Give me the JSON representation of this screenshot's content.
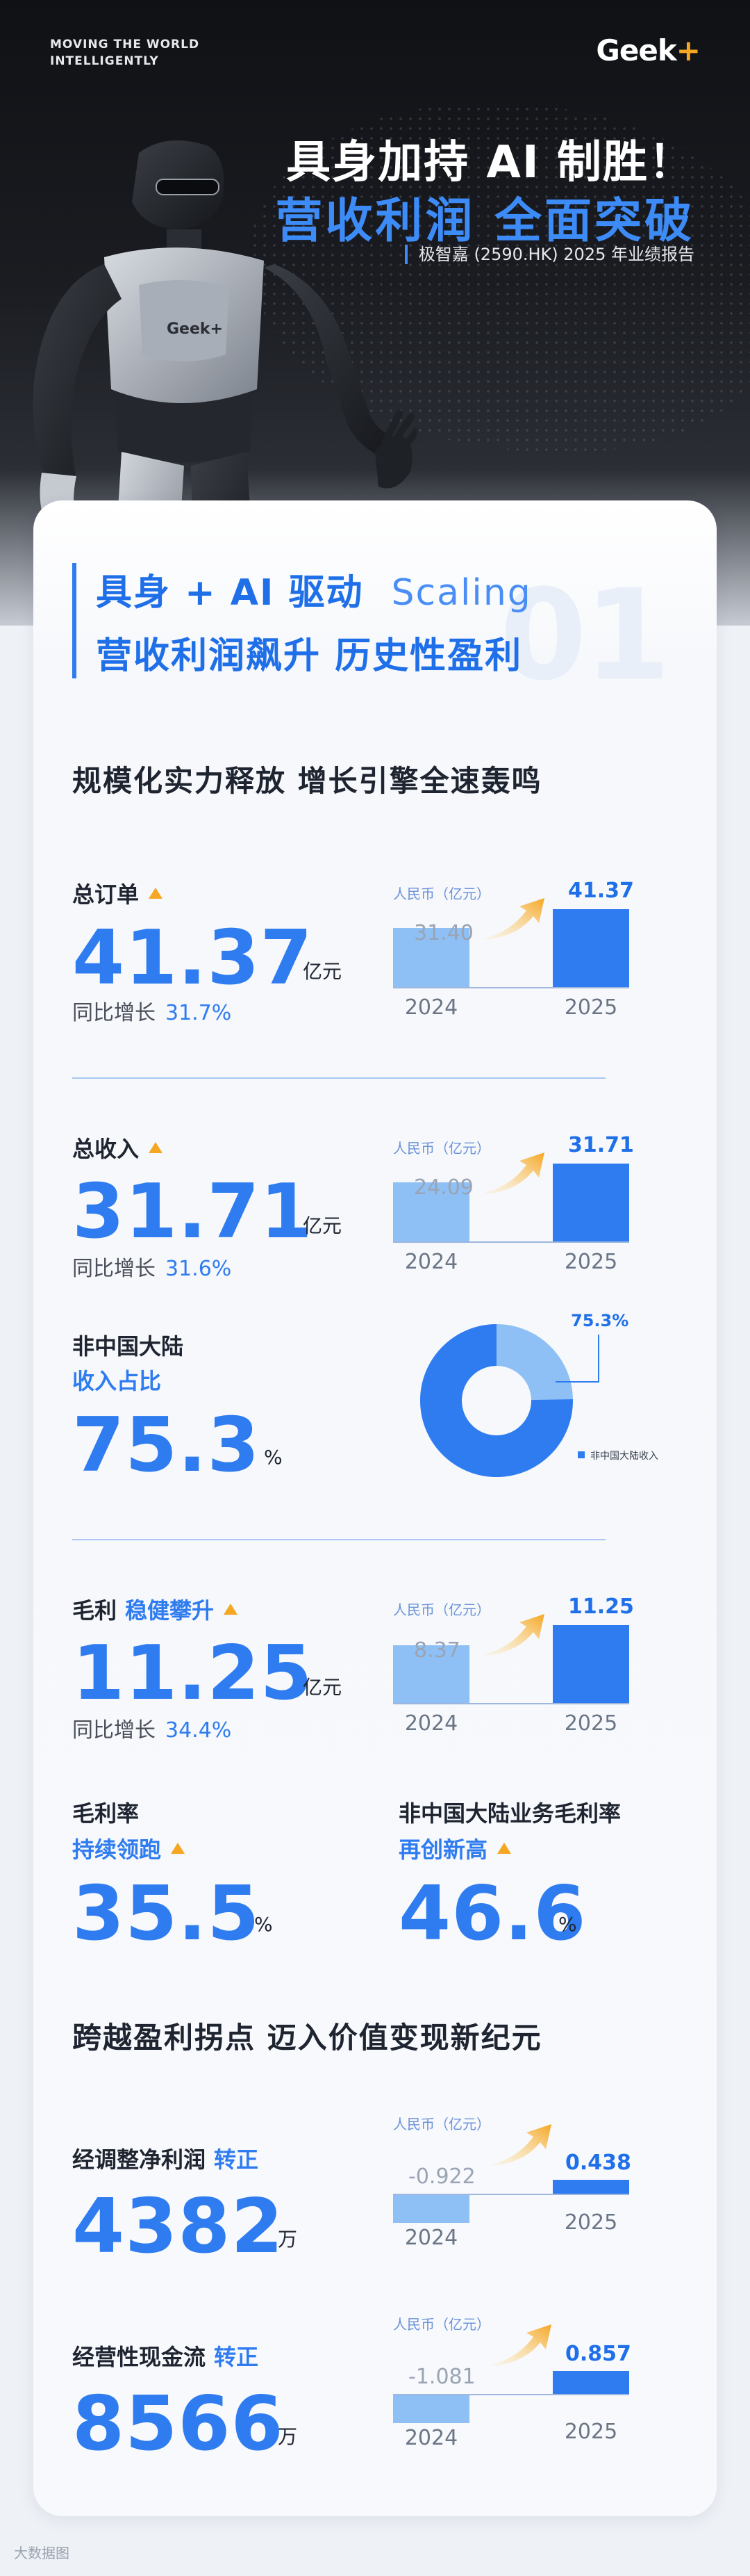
{
  "hero": {
    "tagline_l1": "MOVING THE WORLD",
    "tagline_l2": "INTELLIGENTLY",
    "brand": "Geek",
    "brand_plus": "+",
    "robot_badge": "Geek+",
    "title_line1": "具身加持 AI 制胜！",
    "title_line2": "营收利润 全面突破",
    "subtitle": "极智嘉 (2590.HK) 2025 年业绩报告"
  },
  "intro": {
    "line1": "具身 + AI 驱动",
    "line1_en": "Scaling",
    "line2": "营收利润飙升 历史性盈利",
    "number": "01"
  },
  "section1_title": "规模化实力释放 增长引擎全速轰鸣",
  "section2_title": "跨越盈利拐点 迈入价值变现新纪元",
  "metrics": {
    "orders": {
      "label": "总订单",
      "value": "41.37",
      "unit": "亿元",
      "yoy_label": "同比增长",
      "yoy": "31.7%",
      "chart": {
        "unit": "人民币（亿元）",
        "prev": 31.4,
        "curr": 41.37,
        "prev_label": "31.40",
        "curr_label": "41.37",
        "prev_year": "2024",
        "curr_year": "2025"
      }
    },
    "revenue": {
      "label": "总收入",
      "value": "31.71",
      "unit": "亿元",
      "yoy_label": "同比增长",
      "yoy": "31.6%",
      "chart": {
        "unit": "人民币（亿元）",
        "prev": 24.09,
        "curr": 31.71,
        "prev_label": "24.09",
        "curr_label": "31.71",
        "prev_year": "2024",
        "curr_year": "2025"
      }
    },
    "overseas": {
      "label_l1": "非中国大陆",
      "label_l2": "收入占比",
      "value": "75.3",
      "unit": "%",
      "donut": {
        "share": 75.3,
        "callout": "75.3%",
        "legend": "非中国大陆收入"
      }
    },
    "gross_profit": {
      "label": "毛利",
      "label_blue": "稳健攀升",
      "value": "11.25",
      "unit": "亿元",
      "yoy_label": "同比增长",
      "yoy": "34.4%",
      "chart": {
        "unit": "人民币（亿元）",
        "prev": 8.37,
        "curr": 11.25,
        "prev_label": "8.37",
        "curr_label": "11.25",
        "prev_year": "2024",
        "curr_year": "2025"
      }
    },
    "gross_margin": {
      "label": "毛利率",
      "label_l2": "持续领跑",
      "value": "35.5",
      "unit": "%"
    },
    "overseas_margin": {
      "label": "非中国大陆业务毛利率",
      "label_l2": "再创新高",
      "value": "46.6",
      "unit": "%"
    },
    "adj_net_profit": {
      "label": "经调整净利润",
      "label_blue": "转正",
      "value": "4382",
      "unit": "万",
      "chart": {
        "unit": "人民币（亿元）",
        "prev": -0.922,
        "curr": 0.438,
        "prev_label": "-0.922",
        "curr_label": "0.438",
        "prev_year": "2024",
        "curr_year": "2025"
      }
    },
    "op_cash_flow": {
      "label": "经营性现金流",
      "label_blue": "转正",
      "value": "8566",
      "unit": "万",
      "chart": {
        "unit": "人民币（亿元）",
        "prev": -1.081,
        "curr": 0.857,
        "prev_label": "-1.081",
        "curr_label": "0.857",
        "prev_year": "2024",
        "curr_year": "2025"
      }
    }
  },
  "colors": {
    "primary": "#2f7cf0",
    "light": "#8ec0f5",
    "accent": "#f5a623"
  },
  "watermark": "大数据图"
}
